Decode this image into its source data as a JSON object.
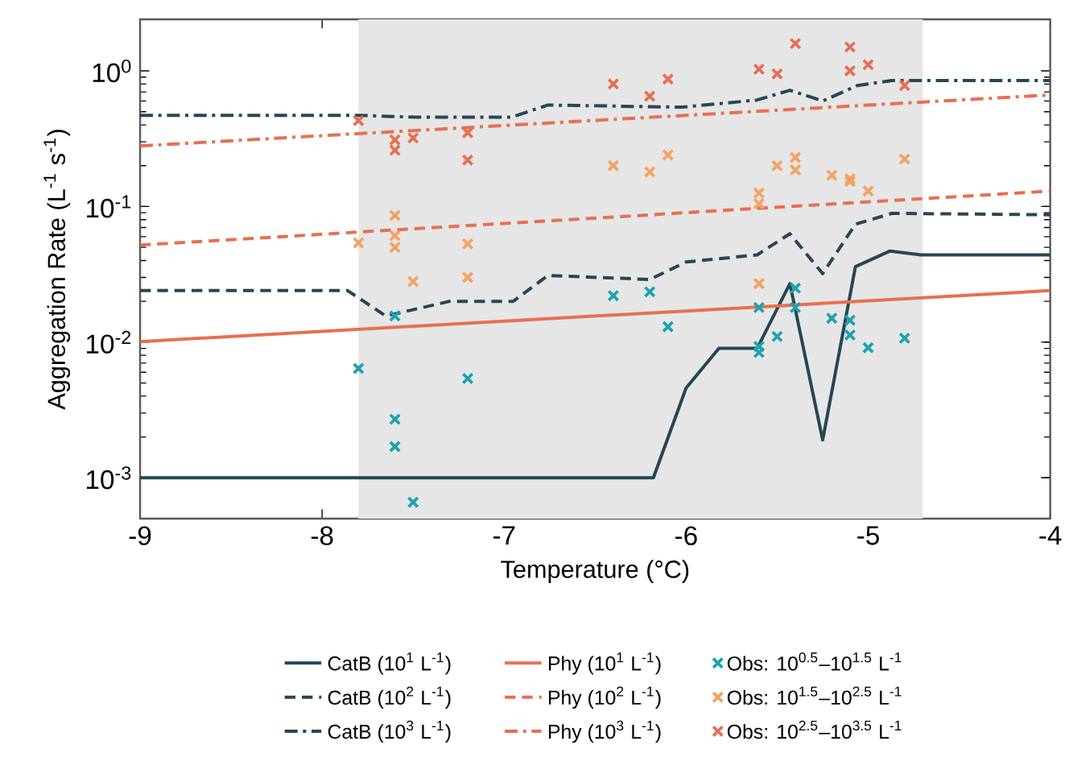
{
  "chart_data": {
    "type": "line",
    "xlabel": "Temperature (°C)",
    "ylabel": "Aggregation Rate (L$^{-1}$ s$^{-1}$)",
    "xlim": [
      -9,
      -4
    ],
    "ylim": [
      0.0005,
      2.4
    ],
    "log": "y",
    "xticks": [
      -9,
      -8,
      -7,
      -6,
      -5,
      -4
    ],
    "yticks": [
      {
        "value": 0.001,
        "label": "10$^{-3}$"
      },
      {
        "value": 0.01,
        "label": "10$^{-2}$"
      },
      {
        "value": 0.1,
        "label": "10$^{-1}$"
      },
      {
        "value": 1,
        "label": "10$^{0}$"
      }
    ],
    "bands": [
      {
        "axis": "x",
        "from": -7.8,
        "to": -4.7,
        "color": "#e6e6e6"
      }
    ],
    "legend": "bottom",
    "series": [
      {
        "name": "CatB (10$^{1}$ L$^{-1}$)",
        "color": "#264653",
        "line_style": "solid",
        "x": [
          -9,
          -6.18,
          -6.0,
          -5.82,
          -5.61,
          -5.43,
          -5.25,
          -5.07,
          -4.88,
          -4.71,
          -4
        ],
        "values": [
          0.001,
          0.001,
          0.0046,
          0.009,
          0.009,
          0.027,
          0.0019,
          0.036,
          0.047,
          0.044,
          0.044
        ]
      },
      {
        "name": "CatB (10$^{2}$ L$^{-1}$)",
        "color": "#264653",
        "line_style": "dashed",
        "x": [
          -9,
          -7.86,
          -7.65,
          -7.3,
          -6.95,
          -6.76,
          -6.2,
          -6.0,
          -5.61,
          -5.43,
          -5.25,
          -5.07,
          -4.87,
          -4
        ],
        "values": [
          0.024,
          0.024,
          0.0156,
          0.02,
          0.02,
          0.031,
          0.029,
          0.039,
          0.044,
          0.063,
          0.032,
          0.074,
          0.089,
          0.087
        ]
      },
      {
        "name": "CatB (10$^{3}$ L$^{-1}$)",
        "color": "#264653",
        "line_style": "dashdot",
        "x": [
          -9,
          -7.8,
          -7.48,
          -6.96,
          -6.76,
          -6.02,
          -5.61,
          -5.43,
          -5.25,
          -5.06,
          -4.87,
          -4
        ],
        "values": [
          0.47,
          0.47,
          0.455,
          0.455,
          0.56,
          0.54,
          0.61,
          0.72,
          0.6,
          0.78,
          0.85,
          0.85
        ]
      },
      {
        "name": "Phy (10$^{1}$ L$^{-1}$)",
        "color": "#e76f51",
        "line_style": "solid",
        "x": [
          -9,
          -4
        ],
        "values": [
          0.0101,
          0.024
        ]
      },
      {
        "name": "Phy (10$^{2}$ L$^{-1}$)",
        "color": "#e76f51",
        "line_style": "dashed",
        "x": [
          -9,
          -4
        ],
        "values": [
          0.052,
          0.13
        ]
      },
      {
        "name": "Phy (10$^{3}$ L$^{-1}$)",
        "color": "#e76f51",
        "line_style": "dashdot",
        "x": [
          -9,
          -4
        ],
        "values": [
          0.28,
          0.665
        ]
      },
      {
        "name": "Obs: 10$^{0.5}$–10$^{1.5}$ L$^{-1}$",
        "type": "scatter",
        "color": "#1ba3ad",
        "marker": "cross",
        "x": [
          -7.8,
          -7.6,
          -7.6,
          -7.6,
          -7.5,
          -7.2,
          -6.4,
          -6.2,
          -6.1,
          -5.6,
          -5.6,
          -5.6,
          -5.5,
          -5.4,
          -5.4,
          -5.2,
          -5.1,
          -5.1,
          -5.0,
          -4.8
        ],
        "values": [
          0.0064,
          0.0156,
          0.0027,
          0.0017,
          0.00066,
          0.0054,
          0.022,
          0.0235,
          0.013,
          0.018,
          0.0093,
          0.0084,
          0.011,
          0.025,
          0.018,
          0.015,
          0.0145,
          0.0113,
          0.0091,
          0.0107
        ]
      },
      {
        "name": "Obs: 10$^{1.5}$–10$^{2.5}$ L$^{-1}$",
        "type": "scatter",
        "color": "#f4a261",
        "marker": "cross",
        "x": [
          -7.8,
          -7.6,
          -7.6,
          -7.6,
          -7.5,
          -7.2,
          -7.2,
          -6.4,
          -6.2,
          -6.1,
          -5.6,
          -5.6,
          -5.6,
          -5.5,
          -5.4,
          -5.4,
          -5.2,
          -5.1,
          -5.1,
          -5.0,
          -4.8
        ],
        "values": [
          0.054,
          0.086,
          0.061,
          0.05,
          0.028,
          0.053,
          0.03,
          0.2,
          0.18,
          0.24,
          0.126,
          0.105,
          0.027,
          0.2,
          0.23,
          0.186,
          0.17,
          0.16,
          0.153,
          0.13,
          0.224
        ]
      },
      {
        "name": "Obs: 10$^{2.5}$–10$^{3.5}$ L$^{-1}$",
        "type": "scatter",
        "color": "#e76f51",
        "marker": "cross",
        "x": [
          -7.8,
          -7.6,
          -7.6,
          -7.5,
          -7.2,
          -7.2,
          -6.4,
          -6.2,
          -6.1,
          -5.6,
          -5.5,
          -5.4,
          -5.1,
          -5.1,
          -5.0,
          -4.8
        ],
        "values": [
          0.43,
          0.31,
          0.26,
          0.32,
          0.35,
          0.22,
          0.8,
          0.65,
          0.87,
          1.03,
          0.95,
          1.59,
          1.5,
          1.0,
          1.11,
          0.78
        ]
      }
    ]
  }
}
